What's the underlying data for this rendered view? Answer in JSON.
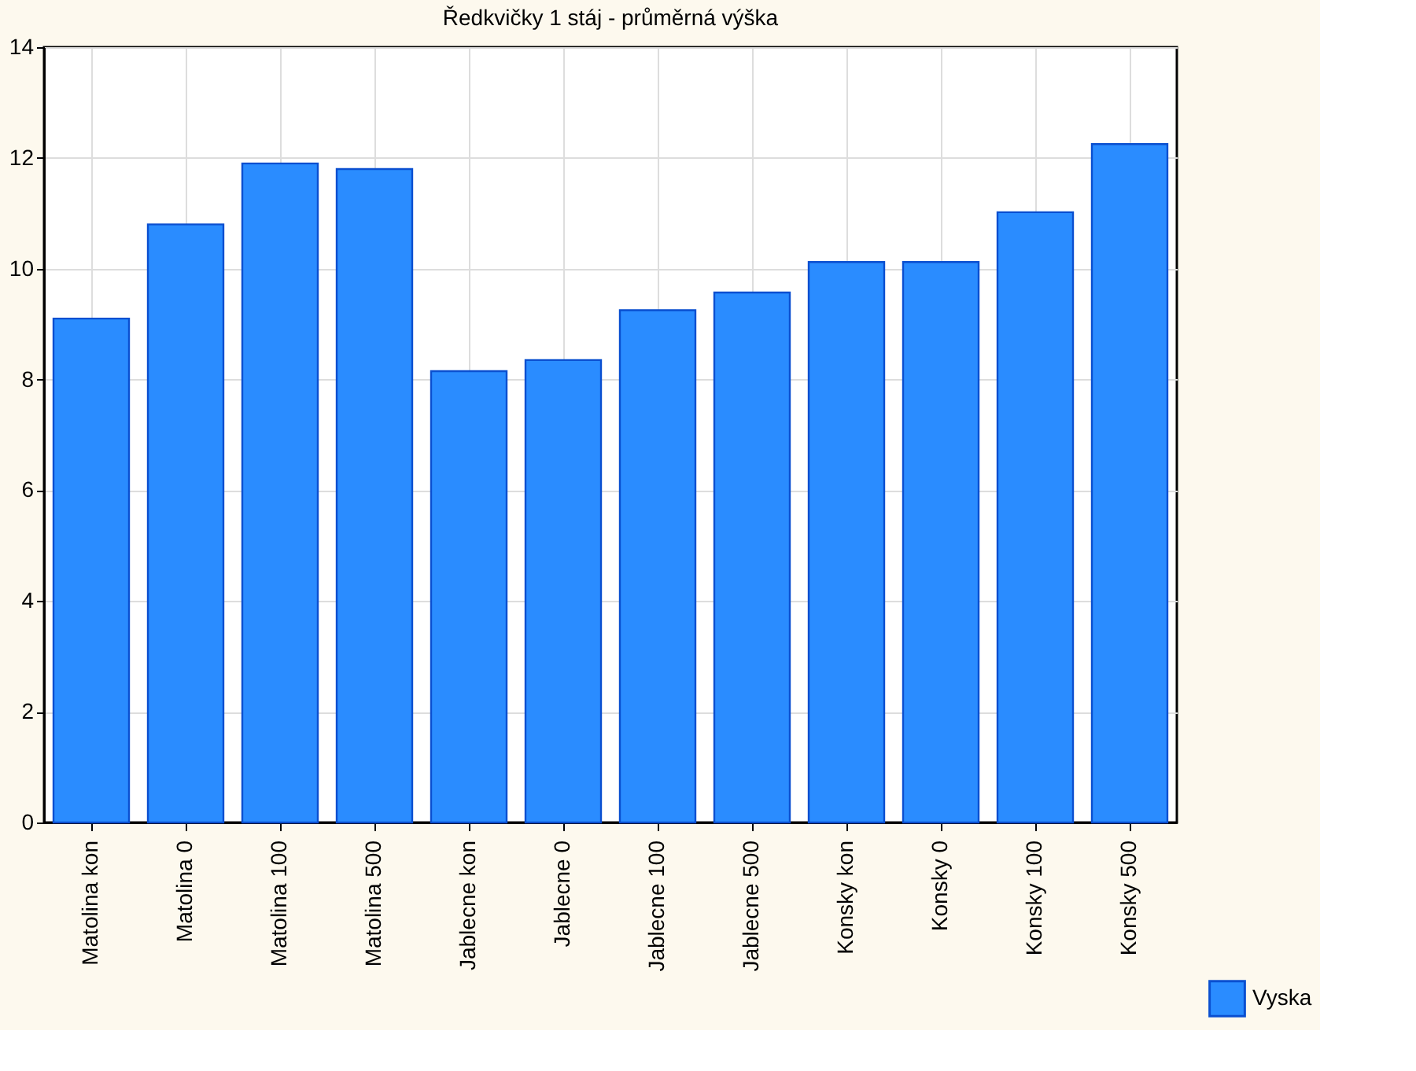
{
  "chart_data": {
    "type": "bar",
    "title": "Ředkvičky 1 stáj - průměrná výška",
    "categories": [
      "Matolina kon",
      "Matolina 0",
      "Matolina 100",
      "Matolina 500",
      "Jablecne kon",
      "Jablecne 0",
      "Jablecne 100",
      "Jablecne 500",
      "Konsky kon",
      "Konsky 0",
      "Konsky 100",
      "Konsky 500"
    ],
    "series": [
      {
        "name": "Vyska",
        "color": "#2a8cff",
        "values": [
          9.1,
          10.8,
          11.9,
          11.8,
          8.15,
          8.35,
          9.25,
          9.57,
          10.12,
          10.12,
          11.02,
          12.25
        ]
      }
    ],
    "ylim": [
      0,
      14
    ],
    "yticks": [
      0,
      2,
      4,
      6,
      8,
      10,
      12,
      14
    ],
    "grid": true,
    "legend": "bottom right"
  }
}
